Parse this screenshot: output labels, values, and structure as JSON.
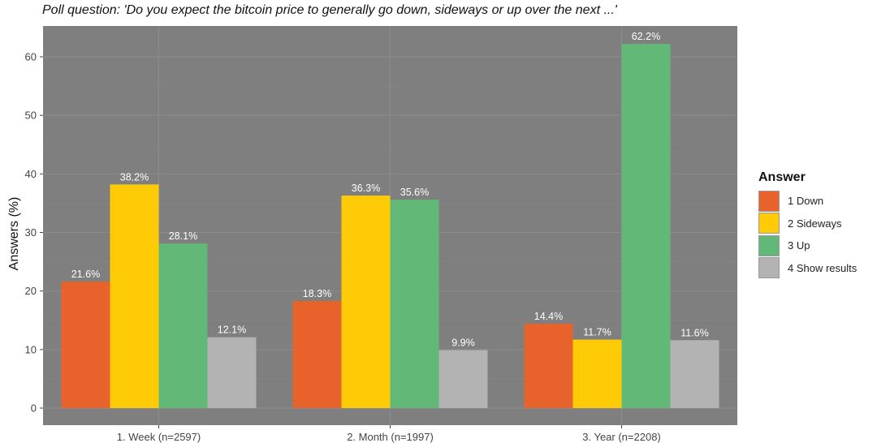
{
  "chart_data": {
    "type": "bar",
    "title": "Poll question: 'Do you expect the bitcoin price to generally go down, sideways or up over the next ...'",
    "xlabel": "",
    "ylabel": "Answers (%)",
    "ylim": [
      0,
      64
    ],
    "yticks": [
      0,
      10,
      20,
      30,
      40,
      50,
      60
    ],
    "grid": true,
    "legend_position": "right",
    "legend_title": "Answer",
    "categories": [
      "1. Week (n=2597)",
      "2. Month (n=1997)",
      "3. Year (n=2208)"
    ],
    "series": [
      {
        "name": "1 Down",
        "color": "#e8632c",
        "values": [
          21.6,
          18.3,
          14.4
        ],
        "labels": [
          "21.6%",
          "18.3%",
          "14.4%"
        ]
      },
      {
        "name": "2 Sideways",
        "color": "#fecb06",
        "values": [
          38.2,
          36.3,
          11.7
        ],
        "labels": [
          "38.2%",
          "36.3%",
          "11.7%"
        ]
      },
      {
        "name": "3 Up",
        "color": "#62b876",
        "values": [
          28.1,
          35.6,
          62.2
        ],
        "labels": [
          "28.1%",
          "35.6%",
          "62.2%"
        ]
      },
      {
        "name": "4 Show results",
        "color": "#b3b3b3",
        "values": [
          12.1,
          9.9,
          11.6
        ],
        "labels": [
          "12.1%",
          "9.9%",
          "11.6%"
        ]
      }
    ],
    "colors": {
      "panel": "#7f7f7f",
      "grid_major": "#8c8c8c",
      "grid_minor": "#858585"
    }
  }
}
